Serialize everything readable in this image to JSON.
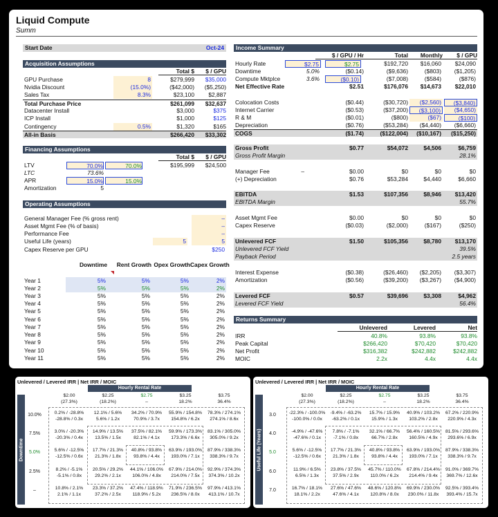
{
  "title": "Liquid Compute",
  "subtitle": "Summ",
  "start": {
    "label": "Start Date",
    "value": "Oct-24"
  },
  "acq": {
    "header": "Acquisition Assumptions",
    "col1": "Total $",
    "col2": "$ / GPU",
    "rows": [
      {
        "label": "GPU Purchase",
        "in": "8",
        "total": "$279,999",
        "pergpu": "$35,000"
      },
      {
        "label": "Nvidia Discount",
        "in": "(15.0%)",
        "total": "($42,000)",
        "pergpu": "($5,250)"
      },
      {
        "label": "Sales Tax",
        "in": "8.3%",
        "total": "$23,100",
        "pergpu": "$2,887"
      },
      {
        "label": "Total Purchase Price",
        "in": "",
        "total": "$261,099",
        "pergpu": "$32,637"
      },
      {
        "label": "Datacenter Install",
        "in": "",
        "total": "$3,000",
        "pergpu": "$375"
      },
      {
        "label": "ICP Install",
        "in": "",
        "total": "$1,000",
        "pergpu": "$125"
      },
      {
        "label": "Contingency",
        "in": "0.5%",
        "total": "$1,320",
        "pergpu": "$165"
      },
      {
        "label": "All-in Basis",
        "in": "",
        "total": "$266,420",
        "pergpu": "$33,302"
      }
    ]
  },
  "fin": {
    "header": "Financing Assumptions",
    "col1": "Total $",
    "col2": "$ / GPU",
    "ltv": {
      "label": "LTV",
      "a": "70.0%",
      "b": "70.0%",
      "total": "$195,999",
      "pergpu": "$24,500"
    },
    "ltc": {
      "label": "LTC",
      "a": "73.6%"
    },
    "apr": {
      "label": "APR",
      "a": "15.0%",
      "b": "15.0%"
    },
    "amort": {
      "label": "Amortization",
      "a": "5"
    }
  },
  "ops": {
    "header": "Operating Assumptions",
    "rows": [
      {
        "label": "General Manager Fee (% gross rent)",
        "v": "–"
      },
      {
        "label": "Asset Mgmt Fee (% of basis)",
        "v": "–"
      },
      {
        "label": "Performance Fee",
        "v": "–"
      },
      {
        "label": "Useful Life (years)",
        "a": "5",
        "v": "5"
      },
      {
        "label": "Capex Reserve per GPU",
        "v": "$250"
      }
    ],
    "cols": [
      "Downtime",
      "Rent Growth",
      "Opex Growth",
      "Capex Growth"
    ],
    "years": [
      {
        "y": "Year 1",
        "v": [
          "5%",
          "5%",
          "5%",
          "2%"
        ]
      },
      {
        "y": "Year 2",
        "v": [
          "5%",
          "5%",
          "5%",
          "2%"
        ]
      },
      {
        "y": "Year 3",
        "v": [
          "5%",
          "5%",
          "5%",
          "2%"
        ]
      },
      {
        "y": "Year 4",
        "v": [
          "5%",
          "5%",
          "5%",
          "2%"
        ]
      },
      {
        "y": "Year 5",
        "v": [
          "5%",
          "5%",
          "5%",
          "2%"
        ]
      },
      {
        "y": "Year 6",
        "v": [
          "5%",
          "5%",
          "5%",
          "2%"
        ]
      },
      {
        "y": "Year 7",
        "v": [
          "5%",
          "5%",
          "5%",
          "2%"
        ]
      },
      {
        "y": "Year 8",
        "v": [
          "5%",
          "5%",
          "5%",
          "2%"
        ]
      },
      {
        "y": "Year 9",
        "v": [
          "5%",
          "5%",
          "5%",
          "2%"
        ]
      },
      {
        "y": "Year 10",
        "v": [
          "5%",
          "5%",
          "5%",
          "2%"
        ]
      },
      {
        "y": "Year 11",
        "v": [
          "5%",
          "5%",
          "5%",
          "2%"
        ]
      }
    ]
  },
  "inc": {
    "header": "Income Summary",
    "cols": [
      "$ / GPU / Hr",
      "Total",
      "Monthly",
      "$ / GPU"
    ],
    "hourly": {
      "label": "Hourly Rate",
      "a": "$2.75",
      "b": "$2.75",
      "total": "$192,720",
      "monthly": "$16,060",
      "gpu": "$24,090"
    },
    "downtime": {
      "label": "Downtime",
      "a": "5.0%",
      "b": "($0.14)",
      "total": "($9,636)",
      "monthly": "($803)",
      "gpu": "($1,205)"
    },
    "mktplc": {
      "label": "Compute Mktplce",
      "a": "3.6%",
      "b": "($0.10)",
      "total": "($7,008)",
      "monthly": "($584)",
      "gpu": "($876)"
    },
    "ner": {
      "label": "Net Effective Rate",
      "b": "$2.51",
      "total": "$176,076",
      "monthly": "$14,673",
      "gpu": "$22,010"
    },
    "coloc": {
      "label": "Colocation Costs",
      "b": "($0.44)",
      "total": "($30,720)",
      "monthly": "($2,560)",
      "gpu": "($3,840)"
    },
    "carrier": {
      "label": "Internet Carrier",
      "b": "($0.53)",
      "total": "($37,200)",
      "monthly": "($3,100)",
      "gpu": "($4,650)"
    },
    "rm": {
      "label": "R & M",
      "b": "($0.01)",
      "total": "($800)",
      "monthly": "($67)",
      "gpu": "($100)"
    },
    "dep": {
      "label": "Depreciation",
      "b": "($0.76)",
      "total": "($53,284)",
      "monthly": "($4,440)",
      "gpu": "($6,660)"
    },
    "cogs": {
      "label": "COGS",
      "b": "($1.74)",
      "total": "($122,004)",
      "monthly": "($10,167)",
      "gpu": "($15,250)"
    },
    "gp": {
      "label": "Gross Profit",
      "b": "$0.77",
      "total": "$54,072",
      "monthly": "$4,506",
      "gpu": "$6,759"
    },
    "gpm": {
      "label": "Gross Profit Margin",
      "gpu": "28.1%"
    },
    "mgr": {
      "label": "Manager Fee",
      "a": "–",
      "b": "$0.00",
      "total": "$0",
      "monthly": "$0",
      "gpu": "$0"
    },
    "pdep": {
      "label": "(+) Depreciation",
      "b": "$0.76",
      "total": "$53,284",
      "monthly": "$4,440",
      "gpu": "$6,660"
    },
    "ebitda": {
      "label": "EBITDA",
      "b": "$1.53",
      "total": "$107,356",
      "monthly": "$8,946",
      "gpu": "$13,420"
    },
    "ebm": {
      "label": "EBITDA Margin",
      "gpu": "55.7%"
    },
    "amf": {
      "label": "Asset Mgmt Fee",
      "b": "$0.00",
      "total": "$0",
      "monthly": "$0",
      "gpu": "$0"
    },
    "capex": {
      "label": "Capex Reserve",
      "b": "($0.03)",
      "total": "($2,000)",
      "monthly": "($167)",
      "gpu": "($250)"
    },
    "ufcf": {
      "label": "Unlevered FCF",
      "b": "$1.50",
      "total": "$105,356",
      "monthly": "$8,780",
      "gpu": "$13,170"
    },
    "ufy": {
      "label": "Unlevered FCF Yield",
      "gpu": "39.5%"
    },
    "pp": {
      "label": "Payback Period",
      "gpu": "2.5 years"
    },
    "int": {
      "label": "Interest Expense",
      "b": "($0.38)",
      "total": "($26,460)",
      "monthly": "($2,205)",
      "gpu": "($3,307)"
    },
    "am": {
      "label": "Amortization",
      "b": "($0.56)",
      "total": "($39,200)",
      "monthly": "($3,267)",
      "gpu": "($4,900)"
    },
    "lfcf": {
      "label": "Levered FCF",
      "b": "$0.57",
      "total": "$39,696",
      "monthly": "$3,308",
      "gpu": "$4,962"
    },
    "lfy": {
      "label": "Levered FCF Yield",
      "gpu": "56.4%"
    }
  },
  "ret": {
    "header": "Returns Summary",
    "cols": [
      "Unlevered",
      "Levered",
      "Net"
    ],
    "rows": [
      {
        "label": "IRR",
        "u": "40.8%",
        "l": "93.8%",
        "n": "93.8%"
      },
      {
        "label": "Peak Capital",
        "u": "$266,420",
        "l": "$70,420",
        "n": "$70,420"
      },
      {
        "label": "Net Profit",
        "u": "$316,382",
        "l": "$242,882",
        "n": "$242,882"
      },
      {
        "label": "MOIC",
        "u": "2.2x",
        "l": "4.4x",
        "n": "4.4x"
      }
    ]
  },
  "sens1": {
    "title": "Unlevered / Levered IRR | Net IRR / MOIC",
    "hr": "Hourly Rental Rate",
    "axis": "Downtime",
    "cols": [
      {
        "r": "$2.00",
        "p": "(27.3%)"
      },
      {
        "r": "$2.25",
        "p": "(18.2%)"
      },
      {
        "r": "$2.75",
        "p": "–"
      },
      {
        "r": "$3.25",
        "p": "18.2%"
      },
      {
        "r": "$3.75",
        "p": "36.4%"
      }
    ],
    "rows": [
      {
        "h": "10.0%",
        "c": [
          [
            "0.2% / -28.8%",
            "-28.8% / 0.3x"
          ],
          [
            "12.1% / 5.6%",
            "5.6% / 1.2x"
          ],
          [
            "34.2% / 70.9%",
            "70.9% / 3.7x"
          ],
          [
            "55.9% / 154.8%",
            "154.8% / 6.2x"
          ],
          [
            "78.3% / 274.1%",
            "274.1% / 8.6x"
          ]
        ]
      },
      {
        "h": "7.5%",
        "c": [
          [
            "3.0% / -20.3%",
            "-20.3% / 0.4x"
          ],
          [
            "14.9% / 13.5%",
            "13.5% / 1.5x"
          ],
          [
            "37.5% / 82.1%",
            "82.1% / 4.1x"
          ],
          [
            "59.9% / 173.3%",
            "173.3% / 6.6x"
          ],
          [
            "83.1% / 305.0%",
            "305.0% / 9.2x"
          ]
        ]
      },
      {
        "h": "5.0%",
        "c": [
          [
            "5.6% / -12.5%",
            "-12.5% / 0.6x"
          ],
          [
            "17.7% / 21.3%",
            "21.3% / 1.8x"
          ],
          [
            "40.8% / 93.8%",
            "93.8% / 4.4x"
          ],
          [
            "63.9% / 193.0%",
            "193.0% / 7.1x"
          ],
          [
            "87.9% / 338.3%",
            "338.3% / 9.7x"
          ]
        ]
      },
      {
        "h": "2.5%",
        "c": [
          [
            "8.2% / -5.1%",
            "-5.1% / 0.8x"
          ],
          [
            "20.5% / 29.2%",
            "29.2% / 2.1x"
          ],
          [
            "44.1% / 106.0%",
            "106.0% / 4.8x"
          ],
          [
            "67.9% / 214.0%",
            "214.0% / 7.5x"
          ],
          [
            "92.9% / 374.3%",
            "374.3% / 10.2x"
          ]
        ]
      },
      {
        "h": "–",
        "c": [
          [
            "10.8% / 2.1%",
            "2.1% / 1.1x"
          ],
          [
            "23.3% / 37.2%",
            "37.2% / 2.5x"
          ],
          [
            "47.4% / 118.9%",
            "118.9% / 5.2x"
          ],
          [
            "71.9% / 236.5%",
            "236.5% / 8.0x"
          ],
          [
            "97.9% / 413.1%",
            "413.1% / 10.7x"
          ]
        ]
      }
    ]
  },
  "sens2": {
    "title": "Unlevered / Levered IRR | Net IRR / MOIC",
    "hr": "Hourly Rental Rate",
    "axis": "Useful Life (Years)",
    "cols": [
      {
        "r": "$2.00",
        "p": "(27.3%)"
      },
      {
        "r": "$2.25",
        "p": "(18.2%)"
      },
      {
        "r": "$2.75",
        "p": "–"
      },
      {
        "r": "$3.25",
        "p": "18.2%"
      },
      {
        "r": "$3.75",
        "p": "36.4%"
      }
    ],
    "rows": [
      {
        "h": "3.0",
        "c": [
          [
            "-22.3% / -100.0%",
            "-100.0% / 0.0x"
          ],
          [
            "-9.4% / -63.2%",
            "-63.2% / 0.1x"
          ],
          [
            "15.7% / 15.9%",
            "15.9% / 1.3x"
          ],
          [
            "40.9% / 103.2%",
            "103.2% / 2.8x"
          ],
          [
            "67.2% / 220.9%",
            "220.9% / 4.3x"
          ]
        ]
      },
      {
        "h": "4.0",
        "c": [
          [
            "-4.9% / -47.6%",
            "-47.6% / 0.1x"
          ],
          [
            "7.8% / -7.1%",
            "-7.1% / 0.8x"
          ],
          [
            "32.1% / 66.7%",
            "66.7% / 2.8x"
          ],
          [
            "56.4% / 160.5%",
            "160.5% / 4.9x"
          ],
          [
            "81.5% / 293.6%",
            "293.6% / 6.9x"
          ]
        ]
      },
      {
        "h": "5.0",
        "c": [
          [
            "5.6% / -12.5%",
            "-12.5% / 0.6x"
          ],
          [
            "17.7% / 21.3%",
            "21.3% / 1.8x"
          ],
          [
            "40.8% / 93.8%",
            "93.8% / 4.4x"
          ],
          [
            "63.9% / 193.0%",
            "193.0% / 7.1x"
          ],
          [
            "87.9% / 338.3%",
            "338.3% / 9.7x"
          ]
        ]
      },
      {
        "h": "6.0",
        "c": [
          [
            "11.9% / 6.5%",
            "6.5% / 1.3x"
          ],
          [
            "23.8% / 37.5%",
            "37.5% / 2.9x"
          ],
          [
            "45.7% / 110.0%",
            "110.0% / 6.2x"
          ],
          [
            "67.8% / 214.4%",
            "214.4% / 9.4x"
          ],
          [
            "91.0% / 369.7%",
            "369.7% / 12.6x"
          ]
        ]
      },
      {
        "h": "7.0",
        "c": [
          [
            "16.7% / 18.1%",
            "18.1% / 2.2x"
          ],
          [
            "27.6% / 47.6%",
            "47.6% / 4.1x"
          ],
          [
            "48.6% / 120.8%",
            "120.8% / 8.0x"
          ],
          [
            "69.9% / 230.0%",
            "230.0% / 11.8x"
          ],
          [
            "92.5% / 393.4%",
            "393.4% / 15.7x"
          ]
        ]
      }
    ]
  }
}
